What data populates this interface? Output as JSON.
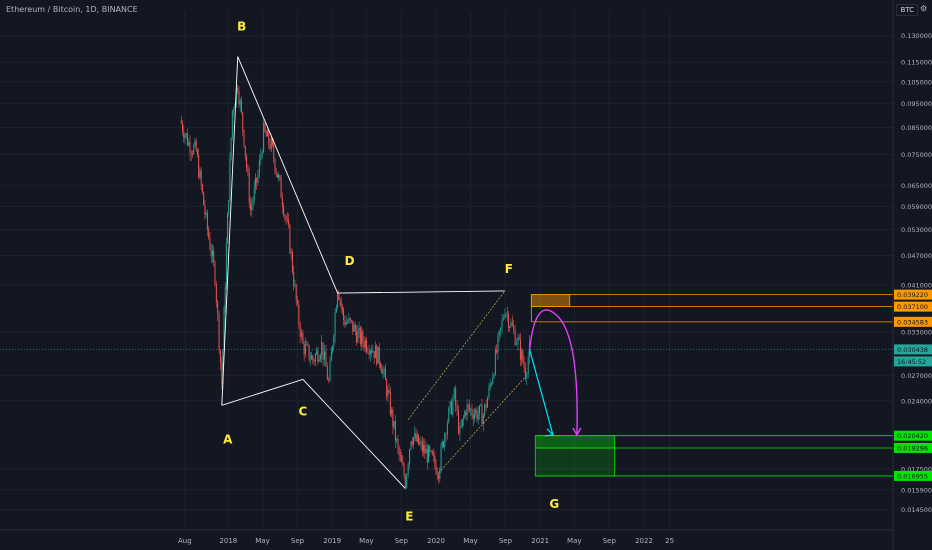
{
  "header": {
    "symbol_title": "Ethereum / Bitcoin, 1D, BINANCE",
    "currency_badge": "BTC"
  },
  "colors": {
    "background": "#131722",
    "grid": "#1e222d",
    "axis_text": "#b2b5be",
    "candle_up": "#26a69a",
    "candle_down": "#ef5350",
    "wave_line": "#ffffff",
    "wave_label": "#ffeb3b",
    "channel": "#c8b84a",
    "orange_zone": "#ff9800",
    "green_zone": "#00e600",
    "cyan_arrow": "#00e5ff",
    "magenta_arrow": "#e040fb",
    "current_price": "#26a69a"
  },
  "chart_data": {
    "type": "candlestick",
    "title": "Ethereum / Bitcoin, 1D, BINANCE",
    "y_scale": "log",
    "ylim": [
      0.0132,
      0.145
    ],
    "x_ticks": [
      "Aug",
      "2018",
      "May",
      "Sep",
      "2019",
      "May",
      "Sep",
      "2020",
      "May",
      "Sep",
      "2021",
      "May",
      "Sep",
      "2022",
      "25"
    ],
    "y_ticks": [
      0.13,
      0.115,
      0.105,
      0.095,
      0.085,
      0.075,
      0.065,
      0.059,
      0.053,
      0.047,
      0.041,
      0.033,
      0.027,
      0.024,
      0.0175,
      0.0159,
      0.0145
    ],
    "price_path": [
      {
        "date": "2017-07-15",
        "price": 0.088
      },
      {
        "date": "2017-08-15",
        "price": 0.079
      },
      {
        "date": "2017-09-10",
        "price": 0.076
      },
      {
        "date": "2017-10-15",
        "price": 0.055
      },
      {
        "date": "2017-11-15",
        "price": 0.043
      },
      {
        "date": "2017-12-09",
        "price": 0.026
      },
      {
        "date": "2017-12-25",
        "price": 0.049
      },
      {
        "date": "2018-01-15",
        "price": 0.092
      },
      {
        "date": "2018-02-03",
        "price": 0.104
      },
      {
        "date": "2018-02-25",
        "price": 0.081
      },
      {
        "date": "2018-03-20",
        "price": 0.058
      },
      {
        "date": "2018-04-15",
        "price": 0.068
      },
      {
        "date": "2018-05-05",
        "price": 0.083
      },
      {
        "date": "2018-06-01",
        "price": 0.078
      },
      {
        "date": "2018-07-01",
        "price": 0.065
      },
      {
        "date": "2018-08-01",
        "price": 0.052
      },
      {
        "date": "2018-09-01",
        "price": 0.036
      },
      {
        "date": "2018-09-20",
        "price": 0.031
      },
      {
        "date": "2018-10-25",
        "price": 0.029
      },
      {
        "date": "2018-11-25",
        "price": 0.031
      },
      {
        "date": "2018-12-20",
        "price": 0.026
      },
      {
        "date": "2019-01-20",
        "price": 0.041
      },
      {
        "date": "2019-02-10",
        "price": 0.035
      },
      {
        "date": "2019-03-10",
        "price": 0.034
      },
      {
        "date": "2019-04-10",
        "price": 0.032
      },
      {
        "date": "2019-05-15",
        "price": 0.031
      },
      {
        "date": "2019-06-20",
        "price": 0.029
      },
      {
        "date": "2019-07-20",
        "price": 0.024
      },
      {
        "date": "2019-08-20",
        "price": 0.019
      },
      {
        "date": "2019-09-15",
        "price": 0.0166
      },
      {
        "date": "2019-10-05",
        "price": 0.0205
      },
      {
        "date": "2019-11-05",
        "price": 0.0195
      },
      {
        "date": "2019-12-10",
        "price": 0.0185
      },
      {
        "date": "2020-01-10",
        "price": 0.0175
      },
      {
        "date": "2020-02-05",
        "price": 0.0215
      },
      {
        "date": "2020-03-05",
        "price": 0.0245
      },
      {
        "date": "2020-03-25",
        "price": 0.0205
      },
      {
        "date": "2020-04-15",
        "price": 0.0232
      },
      {
        "date": "2020-05-15",
        "price": 0.0228
      },
      {
        "date": "2020-06-15",
        "price": 0.0225
      },
      {
        "date": "2020-07-05",
        "price": 0.025
      },
      {
        "date": "2020-08-10",
        "price": 0.032
      },
      {
        "date": "2020-08-30",
        "price": 0.037
      },
      {
        "date": "2020-09-20",
        "price": 0.034
      },
      {
        "date": "2020-10-15",
        "price": 0.0315
      },
      {
        "date": "2020-11-10",
        "price": 0.0275
      },
      {
        "date": "2020-11-25",
        "price": 0.0304
      }
    ],
    "waves": [
      {
        "label": "A",
        "date": "2017-12-09",
        "price": 0.0235
      },
      {
        "label": "B",
        "date": "2018-02-03",
        "price": 0.118
      },
      {
        "label": "C",
        "date": "2018-09-20",
        "price": 0.0265
      },
      {
        "label": "D",
        "date": "2019-01-20",
        "price": 0.0395
      },
      {
        "label": "E",
        "date": "2019-09-15",
        "price": 0.016
      },
      {
        "label": "F",
        "date": "2020-08-30",
        "price": 0.0399
      },
      {
        "label": "G",
        "date": "2021-05-01",
        "price": 0.0165
      }
    ],
    "channel": {
      "upper": [
        {
          "date": "2019-09-25",
          "price": 0.022
        },
        {
          "date": "2020-08-30",
          "price": 0.0399
        }
      ],
      "lower": [
        {
          "date": "2020-01-10",
          "price": 0.0172
        },
        {
          "date": "2020-11-10",
          "price": 0.0268
        }
      ]
    },
    "orange_zone": {
      "from": "2020-12-01",
      "to": "2021-04-15",
      "levels": [
        0.03922,
        0.0371,
        0.03458
      ]
    },
    "green_zone": {
      "from": "2020-12-15",
      "to": "2021-09-20",
      "levels": [
        0.02042,
        0.01929,
        0.01695
      ]
    },
    "projection_cyan": {
      "from": {
        "date": "2020-11-25",
        "price": 0.0304
      },
      "to": {
        "date": "2021-02-15",
        "price": 0.0205
      }
    },
    "projection_magenta": {
      "start": {
        "date": "2020-11-25",
        "price": 0.0304
      },
      "peak": {
        "date": "2021-01-20",
        "price": 0.0355
      },
      "end": {
        "date": "2021-05-10",
        "price": 0.0205
      }
    },
    "price_labels": [
      {
        "text": "0.039220",
        "price": 0.03922,
        "color": "#ff9800"
      },
      {
        "text": "0.037100",
        "price": 0.0371,
        "color": "#ff9800"
      },
      {
        "text": "0.034583",
        "price": 0.03458,
        "color": "#ff9800"
      },
      {
        "text": "0.030438",
        "price": 0.030438,
        "color": "#26a69a"
      },
      {
        "text": "0.020420",
        "price": 0.02042,
        "color": "#00e600"
      },
      {
        "text": "0.019296",
        "price": 0.019296,
        "color": "#00e600"
      },
      {
        "text": "0.016955",
        "price": 0.016955,
        "color": "#00e600"
      }
    ],
    "countdown_label": "16:45:52",
    "current_price": 0.030438
  }
}
